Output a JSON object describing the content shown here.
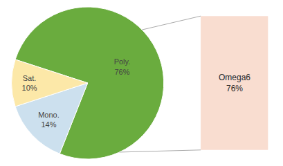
{
  "chart_data": {
    "type": "pie",
    "categories": [
      "Poly.\n76%",
      "Mono.\n14%",
      "Sat.\n10%"
    ],
    "values": [
      76,
      14,
      10
    ],
    "colors": [
      "#6aac3e",
      "#cce0ee",
      "#fce8a8"
    ],
    "annotations": [
      {
        "text": "Omega6\n76%",
        "color": "#f9ddd0"
      }
    ]
  }
}
